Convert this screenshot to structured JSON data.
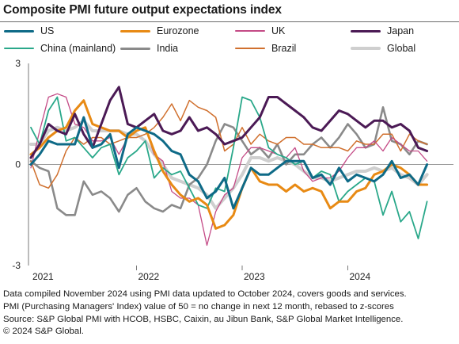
{
  "chart_data": {
    "type": "line",
    "title": "Composite PMI future output expectations index",
    "xlabel": "",
    "ylabel": "",
    "x_start": "2021-01",
    "x_end": "2024-10",
    "x_tick_labels": [
      "2021",
      "2022",
      "2023",
      "2024"
    ],
    "y_ticks": [
      3,
      0,
      -3
    ],
    "ylim": [
      -3,
      3
    ],
    "grid": false,
    "legend_position": "top",
    "series": [
      {
        "name": "US",
        "color": "#0e6a87",
        "width": 3,
        "values": [
          0.0,
          0.3,
          0.7,
          0.6,
          0.6,
          0.6,
          1.4,
          0.5,
          0.6,
          0.9,
          -0.1,
          0.9,
          1.1,
          1.0,
          0.9,
          0.7,
          0.4,
          0.3,
          -0.3,
          -0.5,
          -1.0,
          -0.8,
          -0.4,
          -1.3,
          -0.7,
          -0.1,
          -0.3,
          -0.3,
          -0.1,
          0.1,
          0.1,
          0.1,
          -0.4,
          -0.3,
          -0.6,
          -0.1,
          -0.5,
          -0.3,
          -0.4,
          -0.5,
          -0.3,
          0.1,
          -0.4,
          -0.3,
          -0.6,
          0.0
        ]
      },
      {
        "name": "Eurozone",
        "color": "#e88a14",
        "width": 3,
        "values": [
          0.3,
          0.5,
          0.8,
          1.0,
          1.1,
          1.6,
          1.9,
          1.2,
          1.1,
          1.0,
          1.0,
          0.8,
          1.0,
          1.1,
          0.4,
          -0.2,
          -0.6,
          -0.9,
          -1.1,
          -1.0,
          -1.2,
          -1.9,
          -1.8,
          -1.5,
          -0.7,
          -0.1,
          -0.5,
          -0.6,
          -0.6,
          -0.8,
          -0.6,
          -0.8,
          -0.7,
          -0.8,
          -1.3,
          -1.1,
          -1.1,
          -0.8,
          -0.7,
          -0.3,
          -0.2,
          0.0,
          -0.1,
          -0.3,
          -0.6,
          -0.6
        ]
      },
      {
        "name": "UK",
        "color": "#c44a86",
        "width": 1.3,
        "values": [
          -0.1,
          1.0,
          2.0,
          2.1,
          2.0,
          1.2,
          1.1,
          0.7,
          0.7,
          0.8,
          0.3,
          0.8,
          1.0,
          1.1,
          0.3,
          0.1,
          -0.8,
          -1.0,
          -1.0,
          -1.2,
          -2.4,
          -1.4,
          -0.9,
          -0.7,
          0.2,
          0.5,
          0.5,
          0.4,
          0.3,
          0.2,
          0.5,
          -0.2,
          -0.5,
          -0.4,
          -0.4,
          -0.2,
          0.2,
          0.5,
          0.5,
          0.7,
          0.4,
          0.8,
          0.6,
          0.4,
          0.4,
          0.1
        ]
      },
      {
        "name": "Japan",
        "color": "#4b1a55",
        "width": 3,
        "values": [
          0.2,
          0.6,
          1.2,
          1.0,
          0.9,
          1.5,
          0.9,
          0.5,
          1.2,
          1.9,
          2.3,
          1.2,
          1.1,
          1.3,
          1.5,
          1.0,
          0.9,
          1.0,
          1.4,
          1.0,
          1.1,
          0.9,
          0.6,
          0.7,
          0.8,
          1.1,
          1.4,
          2.0,
          2.0,
          1.8,
          1.6,
          1.4,
          1.1,
          1.0,
          1.3,
          1.6,
          1.5,
          1.3,
          1.1,
          1.3,
          1.3,
          1.1,
          1.2,
          1.0,
          0.5,
          0.4
        ]
      },
      {
        "name": "China (mainland)",
        "color": "#2aa88a",
        "width": 1.8,
        "values": [
          1.1,
          0.6,
          1.6,
          2.0,
          0.7,
          0.8,
          0.5,
          0.2,
          0.5,
          0.6,
          -0.3,
          0.2,
          0.4,
          0.7,
          -0.4,
          -0.1,
          -0.3,
          -0.2,
          -0.7,
          -1.2,
          -1.3,
          -0.7,
          -0.8,
          0.5,
          2.0,
          1.9,
          1.4,
          0.5,
          0.3,
          0.2,
          0.0,
          0.1,
          -0.4,
          -0.2,
          -0.3,
          -1.1,
          -0.8,
          -0.6,
          -0.4,
          -0.5,
          -1.5,
          -0.8,
          -1.7,
          -1.4,
          -2.2,
          -1.1
        ]
      },
      {
        "name": "India",
        "color": "#8a8a8a",
        "width": 2.6,
        "values": [
          0.1,
          -0.1,
          -0.2,
          -1.3,
          -1.5,
          -1.5,
          -0.5,
          -0.9,
          -0.8,
          -1.0,
          -1.4,
          -0.9,
          -0.7,
          -1.1,
          -1.3,
          -1.4,
          -1.2,
          -1.3,
          -0.6,
          -0.4,
          0.0,
          0.7,
          1.2,
          1.1,
          0.7,
          0.3,
          0.5,
          0.2,
          0.6,
          0.0,
          0.3,
          0.3,
          0.6,
          0.8,
          0.5,
          0.8,
          1.2,
          0.9,
          0.5,
          0.6,
          1.7,
          0.7,
          0.6,
          0.3,
          0.7,
          0.6
        ]
      },
      {
        "name": "Brazil",
        "color": "#d0702e",
        "width": 1.5,
        "values": [
          0.1,
          -0.6,
          -0.7,
          -0.3,
          0.4,
          0.8,
          0.6,
          0.8,
          0.8,
          0.6,
          0.7,
          0.8,
          0.8,
          0.9,
          1.1,
          1.4,
          1.8,
          1.3,
          1.9,
          1.7,
          1.6,
          1.4,
          0.4,
          0.6,
          1.1,
          0.6,
          0.9,
          0.7,
          0.6,
          0.8,
          0.8,
          0.6,
          0.6,
          0.5,
          0.5,
          0.5,
          0.4,
          0.7,
          0.6,
          0.6,
          0.9,
          0.9,
          0.4,
          0.9,
          0.7,
          0.6
        ]
      },
      {
        "name": "Global",
        "color": "#cfcfcf",
        "width": 4,
        "values": [
          0.6,
          0.6,
          1.0,
          1.1,
          1.0,
          1.1,
          1.3,
          1.0,
          1.0,
          1.0,
          1.0,
          0.9,
          0.9,
          0.7,
          0.3,
          0.0,
          -0.4,
          -0.5,
          -0.6,
          -0.7,
          -0.9,
          -1.3,
          -1.0,
          -0.7,
          -0.3,
          0.2,
          0.2,
          0.1,
          0.2,
          0.1,
          0.0,
          -0.2,
          -0.4,
          -0.4,
          -0.5,
          -0.4,
          -0.3,
          -0.2,
          -0.2,
          -0.1,
          -0.2,
          -0.1,
          -0.3,
          -0.4,
          -0.6,
          -0.3
        ]
      }
    ]
  },
  "notes": [
    "Data compiled November 2024 using PMI data updated to October 2024, covers goods and services.",
    "PMI (Purchasing Managers' Index) value of 50 = no change in next 12 month, rebased to z-scores",
    "Source: S&P Global PMI with HCOB, HSBC, Caixin, au Jibun Bank, S&P Global Market Intelligence.",
    "© 2024 S&P Global."
  ]
}
